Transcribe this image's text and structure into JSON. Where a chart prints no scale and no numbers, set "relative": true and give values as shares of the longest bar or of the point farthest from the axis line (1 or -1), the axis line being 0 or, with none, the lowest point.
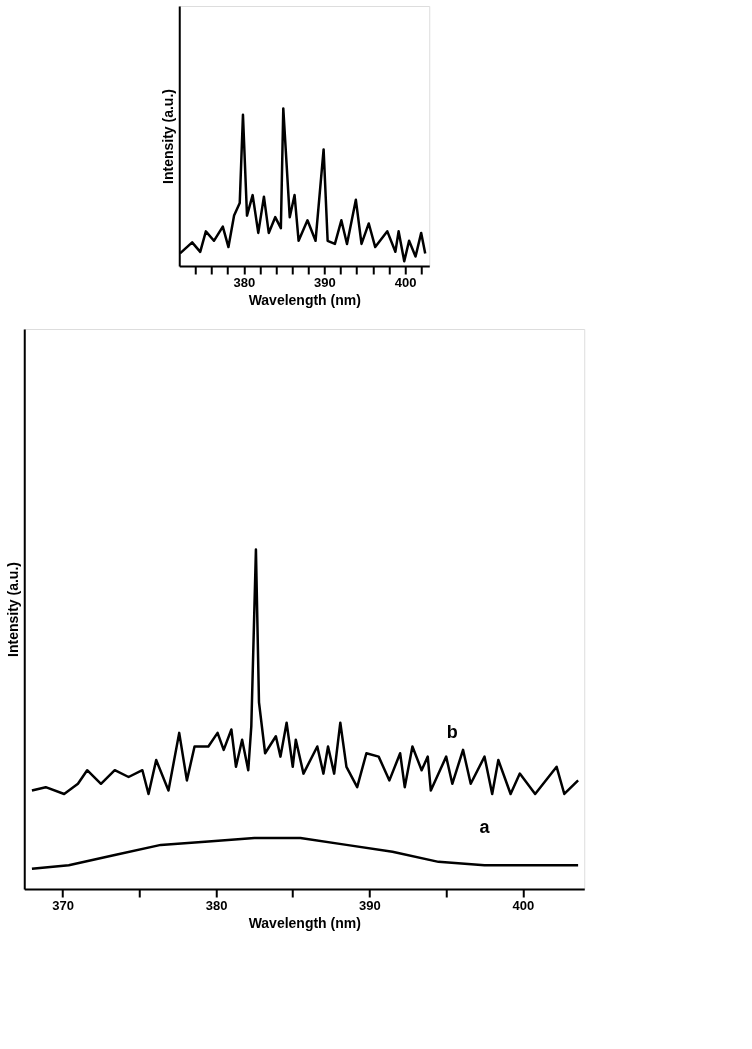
{
  "chart_data": [
    {
      "type": "line",
      "xlabel": "Wavelength (nm)",
      "ylabel": "Intensity (a.u.)",
      "relative": true,
      "grid": false,
      "xlim": [
        367.5,
        404
      ],
      "xticks": [
        370,
        {
          "value": 375,
          "label": null
        },
        380,
        {
          "value": 385,
          "label": null
        },
        390,
        {
          "value": 395,
          "label": null
        },
        400
      ],
      "series": [
        {
          "name": "a",
          "color": "#000000",
          "x": [
            368.0,
            370.4,
            373.4,
            376.4,
            379.5,
            382.5,
            385.5,
            388.5,
            391.5,
            394.5,
            397.5,
            400.5,
            403.6
          ],
          "values": [
            0.06,
            0.07,
            0.1,
            0.13,
            0.14,
            0.15,
            0.15,
            0.13,
            0.11,
            0.08,
            0.07,
            0.07,
            0.07
          ]
        },
        {
          "name": "b",
          "color": "#000000",
          "x": [
            368.0,
            368.9,
            370.1,
            371.0,
            371.6,
            372.5,
            373.4,
            374.3,
            375.2,
            375.6,
            376.1,
            376.9,
            377.6,
            378.1,
            378.6,
            379.5,
            380.1,
            380.5,
            381.0,
            381.3,
            381.7,
            382.1,
            382.3,
            382.6,
            382.8,
            383.2,
            383.9,
            384.2,
            384.6,
            385.0,
            385.2,
            385.7,
            386.6,
            387.0,
            387.3,
            387.7,
            388.1,
            388.5,
            389.2,
            389.8,
            390.6,
            391.3,
            392.0,
            392.3,
            392.8,
            393.4,
            393.8,
            394.0,
            395.0,
            395.4,
            396.1,
            396.6,
            397.5,
            398.0,
            398.4,
            399.2,
            399.8,
            400.8,
            402.2,
            402.7,
            403.6
          ],
          "values": [
            0.29,
            0.3,
            0.28,
            0.31,
            0.35,
            0.31,
            0.35,
            0.33,
            0.35,
            0.28,
            0.38,
            0.29,
            0.46,
            0.32,
            0.42,
            0.42,
            0.46,
            0.41,
            0.47,
            0.36,
            0.44,
            0.35,
            0.48,
            1.0,
            0.55,
            0.4,
            0.45,
            0.39,
            0.49,
            0.36,
            0.44,
            0.34,
            0.42,
            0.34,
            0.42,
            0.34,
            0.49,
            0.36,
            0.3,
            0.4,
            0.39,
            0.32,
            0.4,
            0.3,
            0.42,
            0.35,
            0.39,
            0.29,
            0.39,
            0.31,
            0.41,
            0.31,
            0.39,
            0.28,
            0.38,
            0.28,
            0.34,
            0.28,
            0.36,
            0.28,
            0.32
          ]
        }
      ]
    },
    {
      "type": "line",
      "xlabel": "Wavelength (nm)",
      "ylabel": "Intensity (a.u.)",
      "relative": true,
      "grid": false,
      "xlim": [
        372,
        403
      ],
      "xticks": [
        {
          "value": 374,
          "label": null
        },
        {
          "value": 376,
          "label": null
        },
        {
          "value": 378,
          "label": null
        },
        380,
        {
          "value": 382,
          "label": null
        },
        {
          "value": 384,
          "label": null
        },
        {
          "value": 386,
          "label": null
        },
        {
          "value": 388,
          "label": null
        },
        390,
        {
          "value": 392,
          "label": null
        },
        {
          "value": 394,
          "label": null
        },
        {
          "value": 396,
          "label": null
        },
        {
          "value": 398,
          "label": null
        },
        400,
        {
          "value": 402,
          "label": null
        }
      ],
      "series": [
        {
          "color": "#000000",
          "x": [
            372.1,
            373.6,
            374.6,
            375.3,
            376.3,
            377.4,
            378.1,
            378.8,
            379.5,
            379.9,
            380.4,
            381.1,
            381.8,
            382.5,
            383.1,
            383.9,
            384.6,
            384.9,
            385.7,
            386.3,
            386.8,
            387.9,
            388.9,
            389.9,
            390.4,
            391.3,
            392.1,
            392.8,
            393.9,
            394.6,
            395.5,
            396.3,
            397.8,
            398.8,
            399.2,
            399.9,
            400.5,
            401.3,
            402.0,
            402.5
          ],
          "values": [
            0.08,
            0.15,
            0.09,
            0.22,
            0.16,
            0.25,
            0.12,
            0.32,
            0.4,
            0.96,
            0.32,
            0.45,
            0.21,
            0.44,
            0.21,
            0.31,
            0.24,
            1.0,
            0.31,
            0.45,
            0.16,
            0.29,
            0.16,
            0.74,
            0.16,
            0.14,
            0.29,
            0.14,
            0.42,
            0.14,
            0.27,
            0.12,
            0.22,
            0.09,
            0.22,
            0.03,
            0.16,
            0.06,
            0.21,
            0.08
          ]
        }
      ]
    }
  ]
}
